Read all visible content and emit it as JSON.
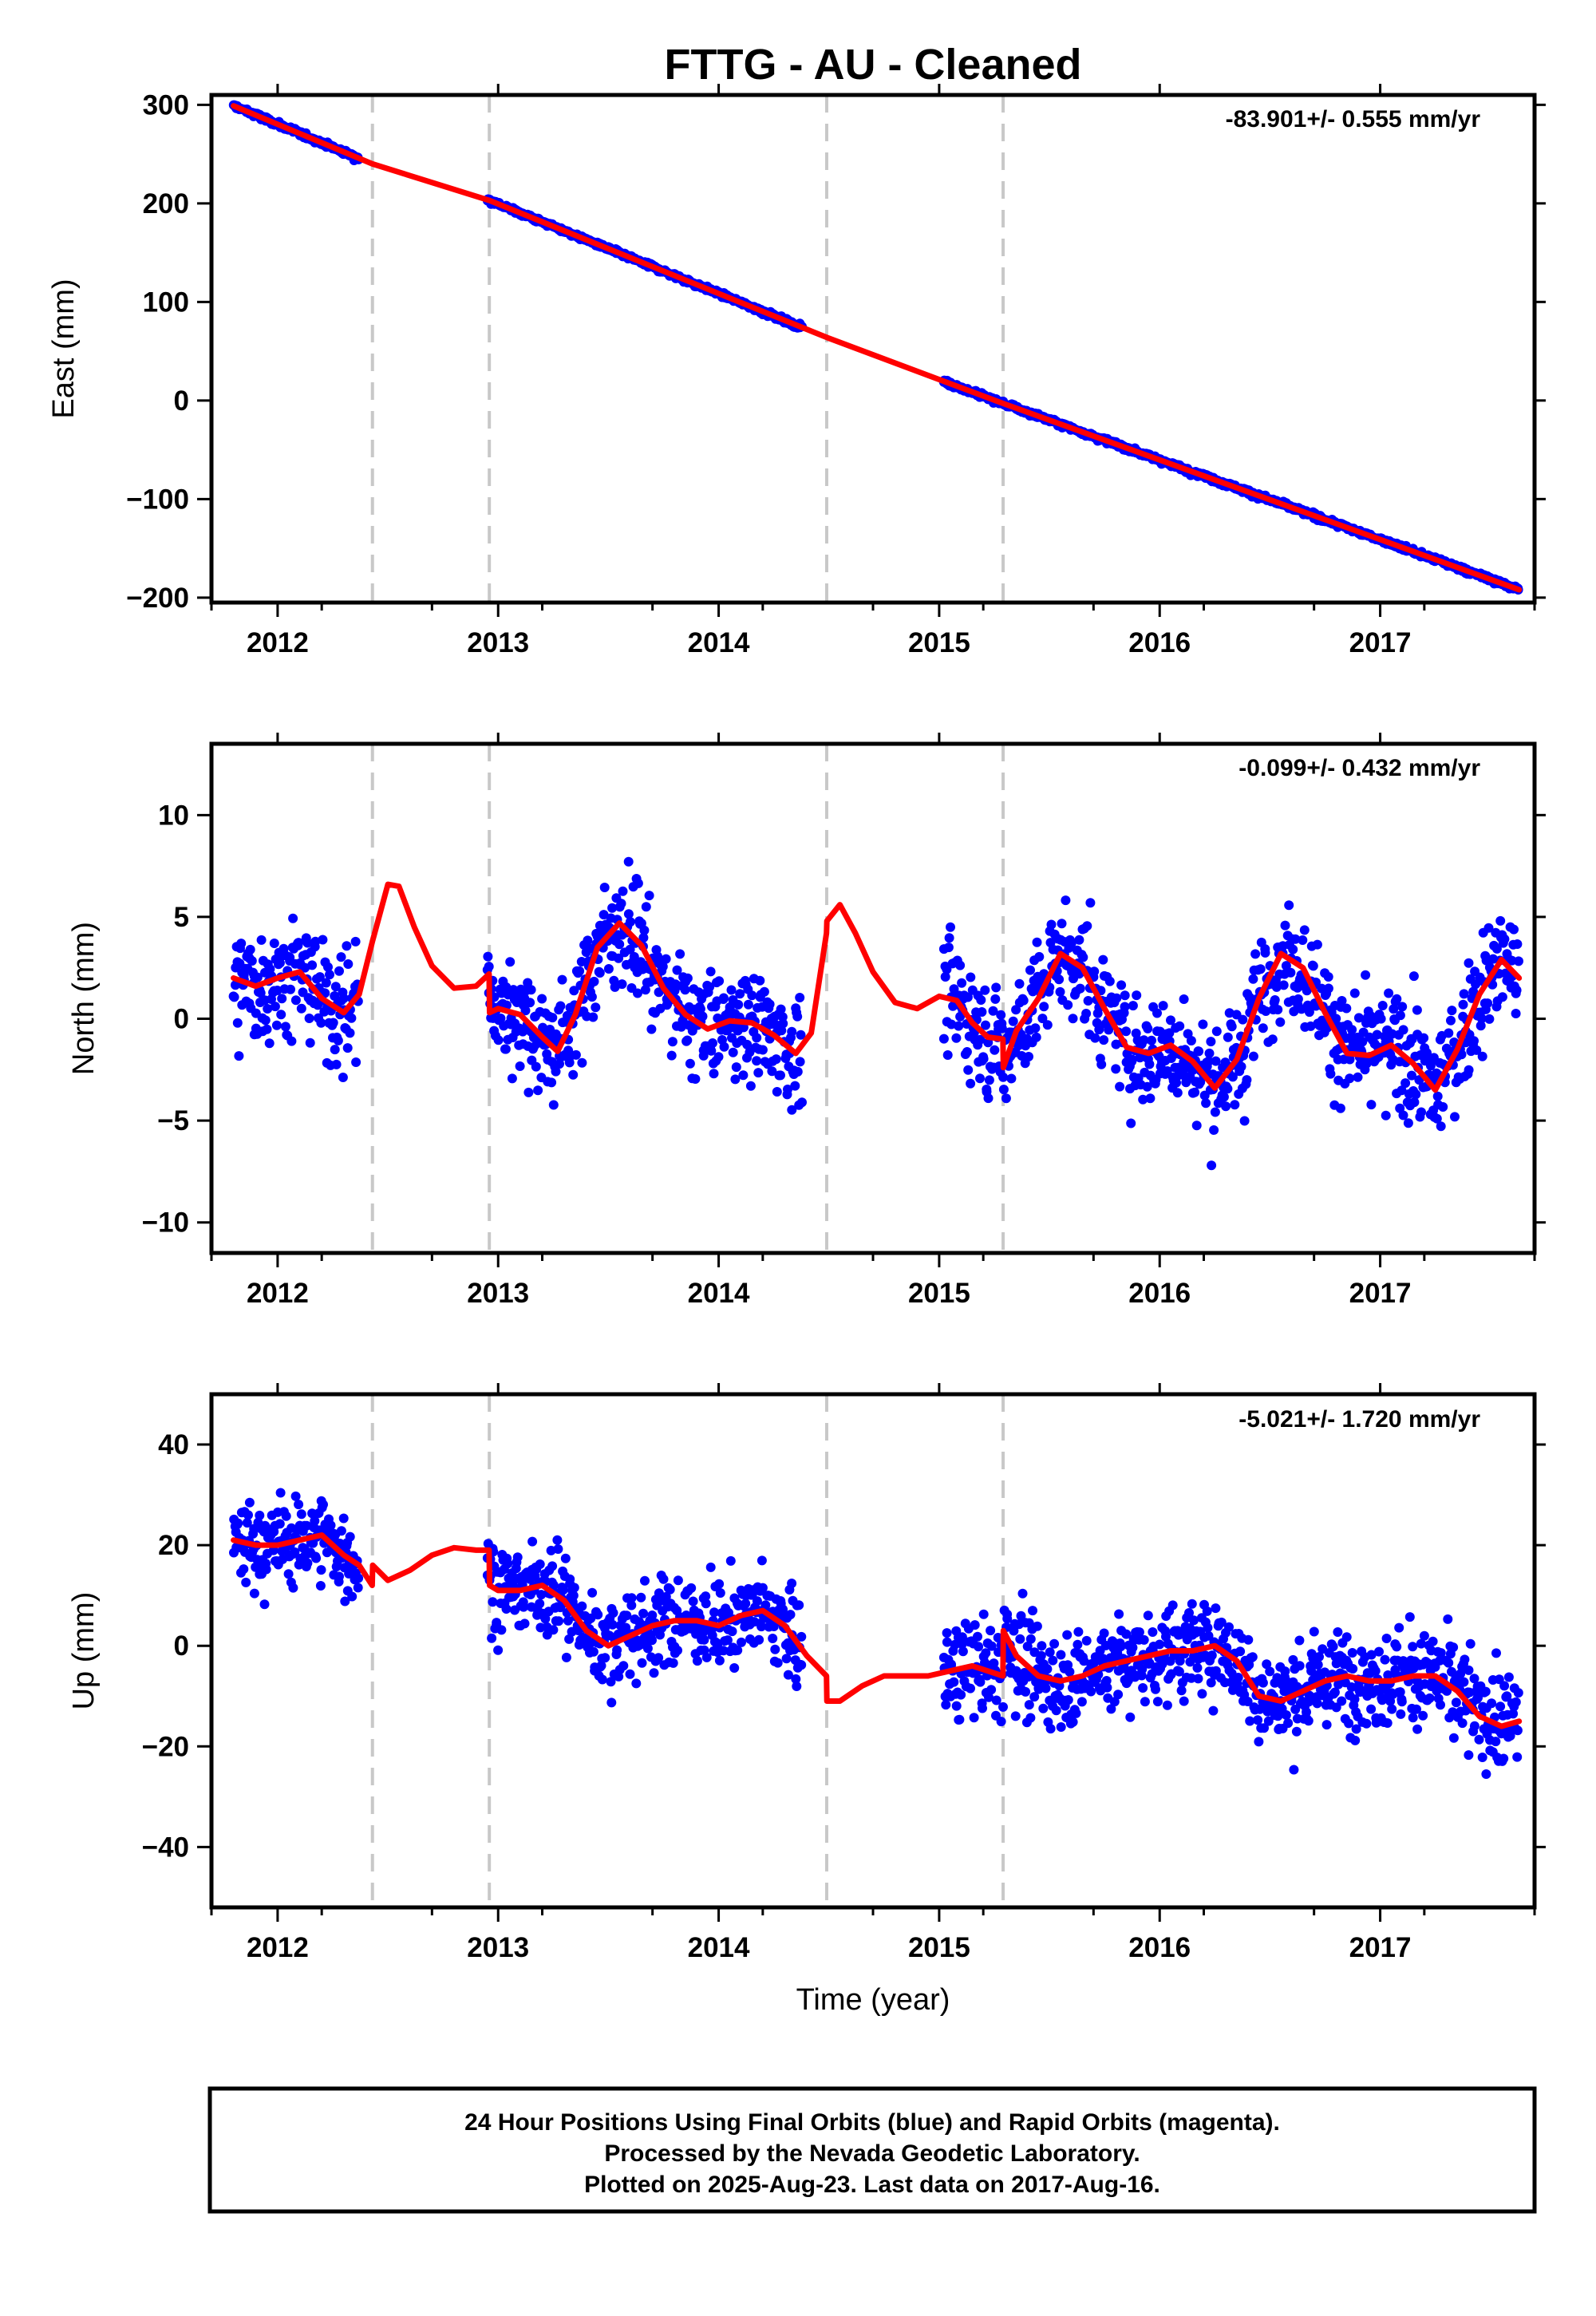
{
  "title": "FTTG  - AU - Cleaned",
  "footer": {
    "lines": [
      "24 Hour Positions Using Final Orbits (blue) and Rapid Orbits (magenta).",
      "Processed by the Nevada Geodetic Laboratory.",
      "Plotted on 2025-Aug-23. Last data on 2017-Aug-16."
    ]
  },
  "colors": {
    "data": "#0000ff",
    "model": "#ff0000",
    "breaks": "#c8c8c8",
    "axis": "#000000"
  },
  "chart_data": [
    {
      "type": "scatter",
      "component": "east",
      "ylabel": "East (mm)",
      "xlabel": "",
      "rate_label": "-83.901+/- 0.555 mm/yr",
      "xlim": [
        2011.7,
        2017.7
      ],
      "ylim": [
        -205,
        310
      ],
      "xticks": [
        2012,
        2013,
        2014,
        2015,
        2016,
        2017
      ],
      "yticks": [
        -200,
        -100,
        0,
        100,
        200,
        300
      ],
      "ytick_labels": [
        "−200",
        "−100",
        "0",
        "100",
        "200",
        "300"
      ],
      "breaks": [
        2012.43,
        2012.96,
        2014.49,
        2015.29
      ],
      "data_segments": [
        [
          2011.8,
          2012.37,
          2.5
        ],
        [
          2012.95,
          2014.38,
          2.2
        ],
        [
          2015.02,
          2017.63,
          2.4
        ]
      ],
      "model": {
        "rate": -83.9,
        "x": [
          2011.8,
          2012.43,
          2012.96,
          2014.49,
          2015.29,
          2017.63
        ],
        "y": [
          299,
          240,
          203,
          64,
          -3,
          -192
        ]
      },
      "series": [
        {
          "name": "",
          "kind": "daily positions"
        },
        {
          "name": "",
          "kind": "model fit"
        }
      ]
    },
    {
      "type": "scatter",
      "component": "north",
      "ylabel": "North (mm)",
      "xlabel": "",
      "rate_label": "-0.099+/- 0.432 mm/yr",
      "xlim": [
        2011.7,
        2017.7
      ],
      "ylim": [
        -11.5,
        13.5
      ],
      "xticks": [
        2012,
        2013,
        2014,
        2015,
        2016,
        2017
      ],
      "yticks": [
        -10,
        -5,
        0,
        5,
        10
      ],
      "ytick_labels": [
        "−10",
        "−5",
        "0",
        "5",
        "10"
      ],
      "breaks": [
        2012.43,
        2012.96,
        2014.49,
        2015.29
      ],
      "data_segments": [
        [
          2011.8,
          2012.37,
          2.6
        ],
        [
          2012.95,
          2014.38,
          2.4
        ],
        [
          2015.02,
          2017.63,
          2.5
        ]
      ],
      "model": {
        "x": [
          2011.8,
          2011.9,
          2012.0,
          2012.1,
          2012.2,
          2012.3,
          2012.37,
          2012.43,
          2012.5,
          2012.55,
          2012.62,
          2012.7,
          2012.8,
          2012.9,
          2012.959,
          2012.961,
          2013.0,
          2013.1,
          2013.2,
          2013.27,
          2013.35,
          2013.45,
          2013.55,
          2013.65,
          2013.75,
          2013.85,
          2013.95,
          2014.05,
          2014.15,
          2014.25,
          2014.35,
          2014.42,
          2014.489,
          2014.491,
          2014.55,
          2014.62,
          2014.7,
          2014.8,
          2014.9,
          2015.0,
          2015.08,
          2015.15,
          2015.22,
          2015.289,
          2015.291,
          2015.35,
          2015.45,
          2015.55,
          2015.65,
          2015.75,
          2015.85,
          2015.95,
          2016.05,
          2016.15,
          2016.25,
          2016.35,
          2016.45,
          2016.55,
          2016.65,
          2016.75,
          2016.85,
          2016.95,
          2017.05,
          2017.15,
          2017.25,
          2017.35,
          2017.45,
          2017.55,
          2017.63
        ],
        "y": [
          2.0,
          1.6,
          2.0,
          2.3,
          1.0,
          0.3,
          1.2,
          3.8,
          6.6,
          6.5,
          4.5,
          2.6,
          1.5,
          1.6,
          2.2,
          0.3,
          0.5,
          0.2,
          -0.9,
          -1.6,
          0.2,
          3.5,
          4.7,
          3.6,
          1.5,
          0.2,
          -0.5,
          -0.1,
          -0.2,
          -0.8,
          -1.7,
          -0.7,
          4.2,
          4.8,
          5.6,
          4.2,
          2.3,
          0.8,
          0.5,
          1.1,
          0.9,
          -0.2,
          -0.9,
          -1.0,
          -2.4,
          -0.6,
          1.0,
          3.2,
          2.5,
          0.5,
          -1.4,
          -1.7,
          -1.3,
          -2.1,
          -3.4,
          -2.0,
          1.0,
          3.2,
          2.5,
          0.3,
          -1.7,
          -1.8,
          -1.3,
          -2.2,
          -3.5,
          -1.5,
          1.2,
          2.9,
          2.0
        ]
      },
      "series": [
        {
          "name": "",
          "kind": "daily positions"
        },
        {
          "name": "",
          "kind": "model fit"
        }
      ]
    },
    {
      "type": "scatter",
      "component": "up",
      "ylabel": "Up (mm)",
      "xlabel": "Time (year)",
      "rate_label": "-5.021+/- 1.720 mm/yr",
      "xlim": [
        2011.7,
        2017.7
      ],
      "ylim": [
        -52,
        50
      ],
      "xticks": [
        2012,
        2013,
        2014,
        2015,
        2016,
        2017
      ],
      "yticks": [
        -40,
        -20,
        0,
        20,
        40
      ],
      "ytick_labels": [
        "−40",
        "−20",
        "0",
        "20",
        "40"
      ],
      "breaks": [
        2012.43,
        2012.96,
        2014.49,
        2015.29
      ],
      "data_segments": [
        [
          2011.8,
          2012.37,
          8
        ],
        [
          2012.95,
          2014.38,
          8
        ],
        [
          2015.02,
          2017.63,
          8.5
        ]
      ],
      "model": {
        "x": [
          2011.8,
          2011.9,
          2012.0,
          2012.1,
          2012.2,
          2012.3,
          2012.37,
          2012.429,
          2012.431,
          2012.5,
          2012.6,
          2012.7,
          2012.8,
          2012.9,
          2012.959,
          2012.961,
          2013.0,
          2013.1,
          2013.2,
          2013.3,
          2013.4,
          2013.5,
          2013.6,
          2013.7,
          2013.8,
          2013.9,
          2014.0,
          2014.1,
          2014.2,
          2014.3,
          2014.4,
          2014.489,
          2014.491,
          2014.55,
          2014.65,
          2014.75,
          2014.85,
          2014.95,
          2015.05,
          2015.15,
          2015.22,
          2015.289,
          2015.291,
          2015.35,
          2015.45,
          2015.55,
          2015.65,
          2015.75,
          2015.85,
          2015.95,
          2016.05,
          2016.15,
          2016.25,
          2016.35,
          2016.45,
          2016.55,
          2016.65,
          2016.75,
          2016.85,
          2016.95,
          2017.05,
          2017.15,
          2017.25,
          2017.35,
          2017.45,
          2017.55,
          2017.63
        ],
        "y": [
          21,
          20,
          20,
          21,
          22,
          18,
          16,
          12,
          16,
          13,
          15,
          18,
          19.5,
          19,
          19,
          12,
          11,
          11,
          12,
          9,
          3,
          0,
          2,
          4,
          5,
          5,
          4,
          6,
          7,
          4,
          -2,
          -6,
          -11,
          -11,
          -8,
          -6,
          -6,
          -6,
          -5,
          -4,
          -5,
          -6,
          3,
          -2,
          -6,
          -7,
          -6,
          -4,
          -3,
          -2,
          -1,
          -1,
          0,
          -3,
          -10,
          -11,
          -9,
          -7,
          -6,
          -7,
          -7,
          -6,
          -6,
          -9,
          -14,
          -16,
          -15
        ]
      },
      "series": [
        {
          "name": "",
          "kind": "daily positions"
        },
        {
          "name": "",
          "kind": "model fit"
        }
      ]
    }
  ]
}
